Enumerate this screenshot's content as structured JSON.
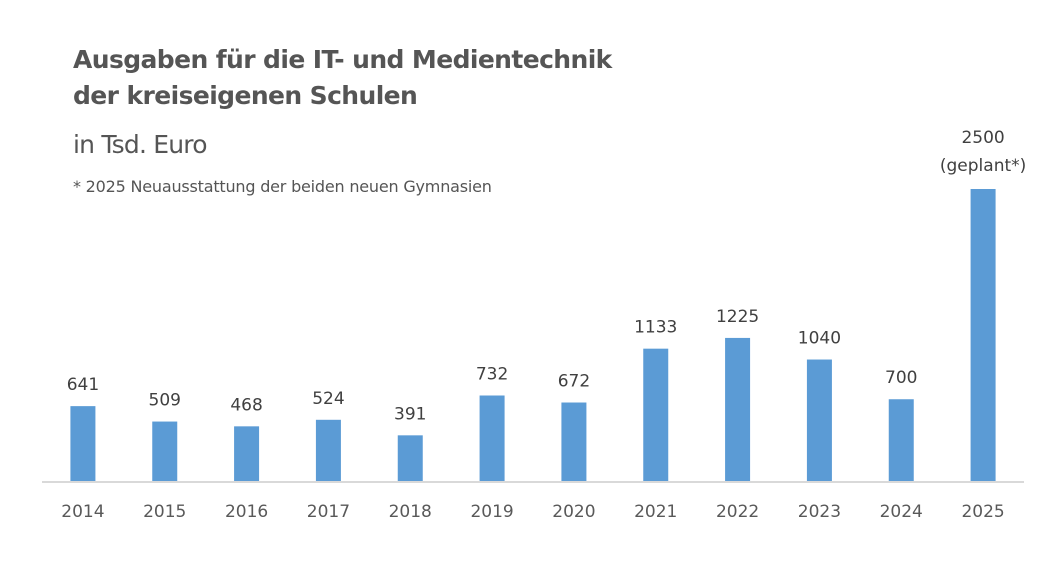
{
  "chart_data": {
    "type": "bar",
    "title": "Ausgaben für die IT- und Medientechnik der kreiseigenen Schulen",
    "title_lines": [
      "Ausgaben für die IT- und Medientechnik",
      "der kreiseigenen Schulen"
    ],
    "subtitle": "in Tsd. Euro",
    "note": "* 2025 Neuausstattung der beiden neuen Gymnasien",
    "xlabel": "",
    "ylabel": "",
    "ylim": [
      0,
      2500
    ],
    "grid": false,
    "bar_color": "#5b9bd5",
    "categories": [
      "2014",
      "2015",
      "2016",
      "2017",
      "2018",
      "2019",
      "2020",
      "2021",
      "2022",
      "2023",
      "2024",
      "2025"
    ],
    "values": [
      641,
      509,
      468,
      524,
      391,
      732,
      672,
      1133,
      1225,
      1040,
      700,
      2500
    ],
    "data_labels": [
      "641",
      "509",
      "468",
      "524",
      "391",
      "732",
      "672",
      "1133",
      "1225",
      "1040",
      "700",
      "2500"
    ],
    "annotations": [
      {
        "category": "2025",
        "text": "(geplant*)"
      }
    ]
  }
}
